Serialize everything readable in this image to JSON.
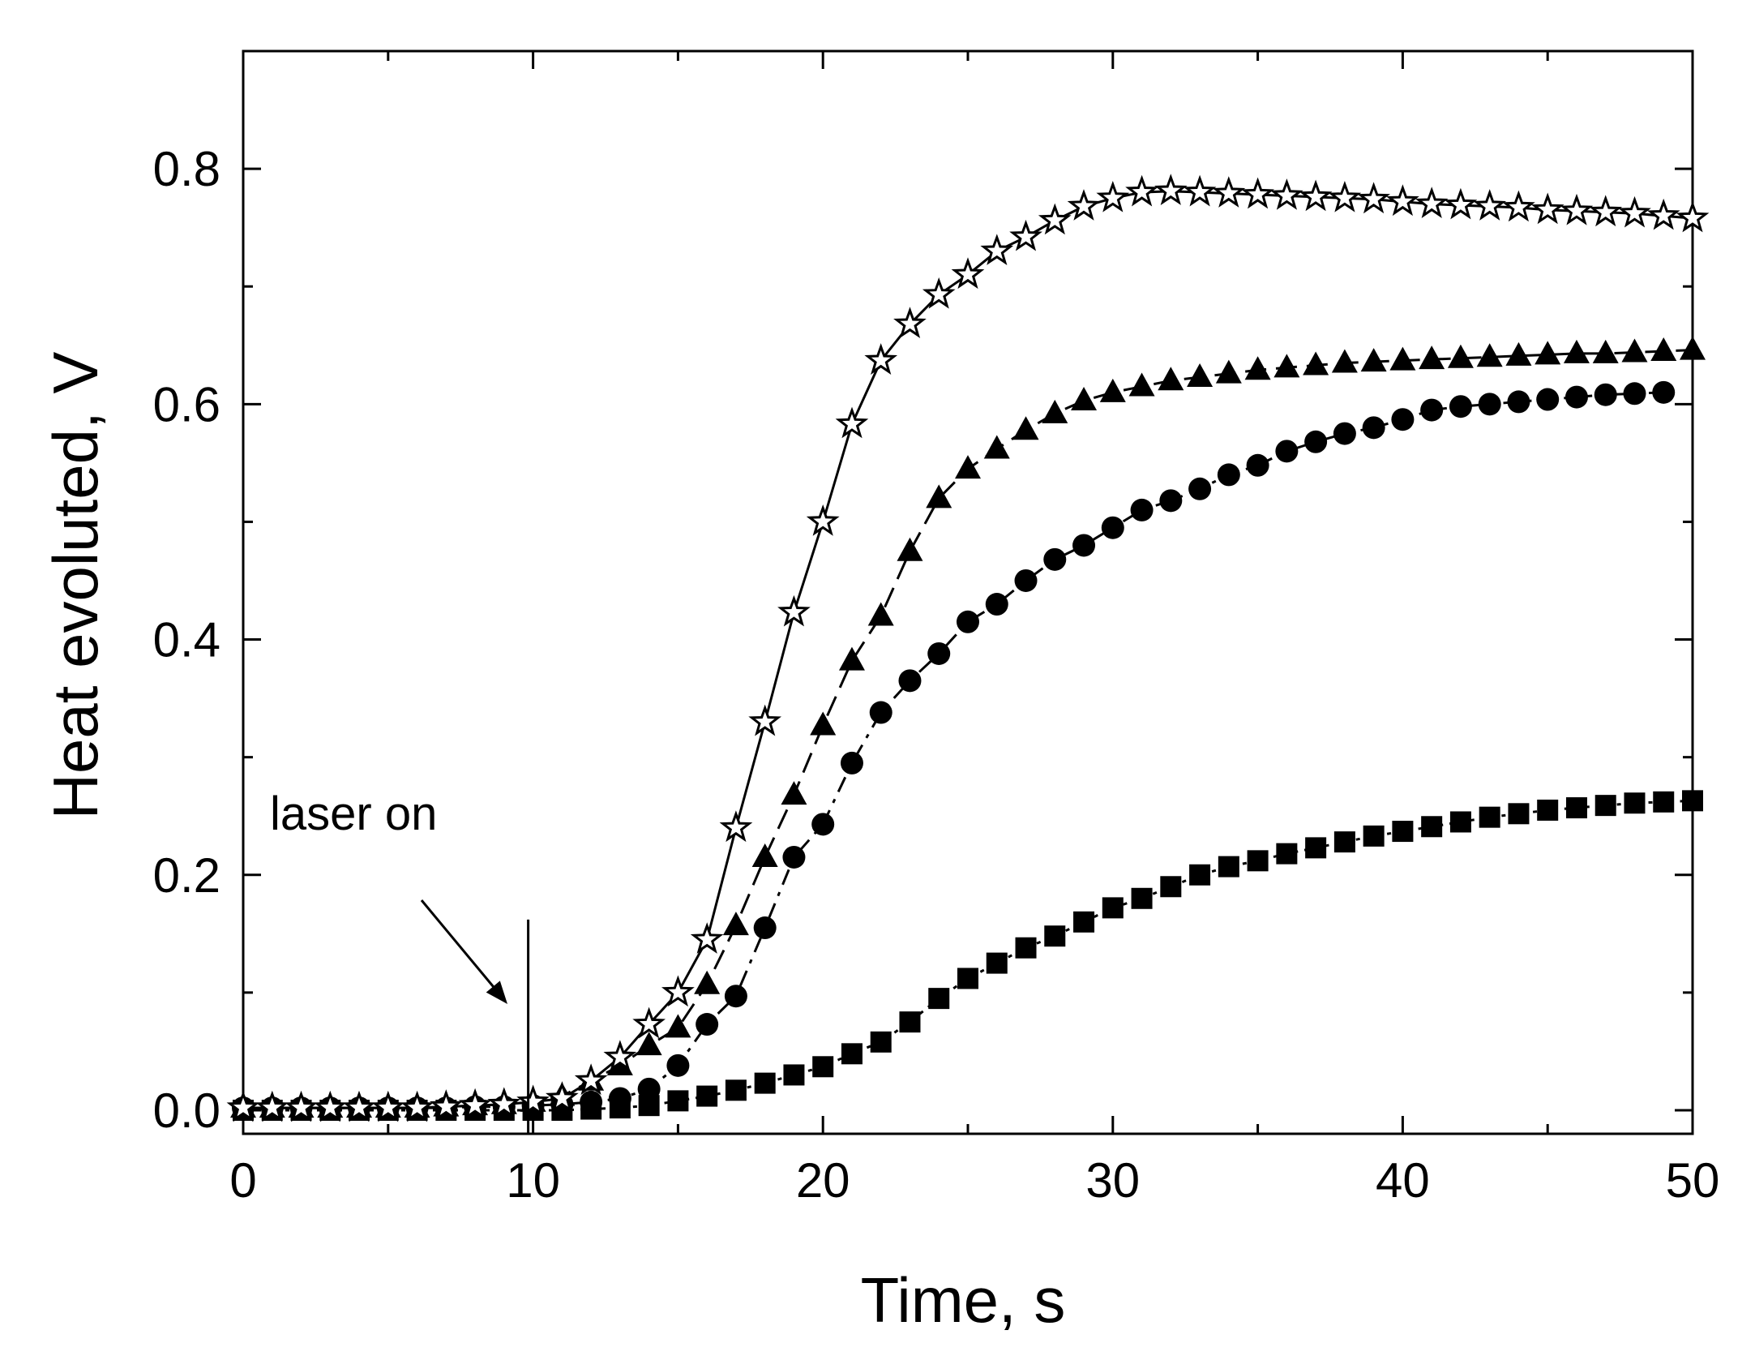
{
  "chart_data": {
    "type": "scatter",
    "title": "",
    "xlabel": "Time, s",
    "ylabel": "Heat evoluted, V",
    "xlim": [
      0,
      50
    ],
    "ylim": [
      -0.02,
      0.9
    ],
    "x_ticks": [
      0,
      10,
      20,
      30,
      40,
      50
    ],
    "x_tick_labels": [
      "0",
      "10",
      "20",
      "30",
      "40",
      "50"
    ],
    "y_ticks": [
      0.0,
      0.2,
      0.4,
      0.6,
      0.8
    ],
    "y_tick_labels": [
      "0.0",
      "0.2",
      "0.4",
      "0.6",
      "0.8"
    ],
    "x_minor_step": 5,
    "y_minor_step": 0.1,
    "grid": false,
    "legend": "none",
    "annotations": [
      {
        "text": "laser on",
        "x": 10
      }
    ],
    "color": "#000000",
    "series": [
      {
        "name": "squares",
        "marker": "square",
        "line": "dotted",
        "x": [
          0,
          1,
          2,
          3,
          4,
          5,
          6,
          7,
          8,
          9,
          10,
          11,
          12,
          13,
          14,
          15,
          16,
          17,
          18,
          19,
          20,
          21,
          22,
          23,
          24,
          25,
          26,
          27,
          28,
          29,
          30,
          31,
          32,
          33,
          34,
          35,
          36,
          37,
          38,
          39,
          40,
          41,
          42,
          43,
          44,
          45,
          46,
          47,
          48,
          49,
          50
        ],
        "y": [
          0,
          0,
          0,
          0,
          0,
          0,
          0,
          0,
          0,
          0,
          0,
          0,
          0.001,
          0.002,
          0.004,
          0.008,
          0.012,
          0.017,
          0.023,
          0.03,
          0.037,
          0.048,
          0.058,
          0.075,
          0.095,
          0.112,
          0.125,
          0.138,
          0.148,
          0.16,
          0.172,
          0.18,
          0.19,
          0.2,
          0.207,
          0.212,
          0.218,
          0.223,
          0.228,
          0.233,
          0.237,
          0.241,
          0.245,
          0.249,
          0.252,
          0.255,
          0.257,
          0.259,
          0.261,
          0.262,
          0.263
        ]
      },
      {
        "name": "circles",
        "marker": "circle",
        "line": "dash-dot",
        "x": [
          0,
          1,
          2,
          3,
          4,
          5,
          6,
          7,
          8,
          9,
          10,
          11,
          12,
          13,
          14,
          15,
          16,
          17,
          18,
          19,
          20,
          21,
          22,
          23,
          24,
          25,
          26,
          27,
          28,
          29,
          30,
          31,
          32,
          33,
          34,
          35,
          36,
          37,
          38,
          39,
          40,
          41,
          42,
          43,
          44,
          45,
          46,
          47,
          48,
          49
        ],
        "y": [
          0.002,
          0.002,
          0.002,
          0.002,
          0.002,
          0.002,
          0.002,
          0.002,
          0.003,
          0.003,
          0.004,
          0.005,
          0.007,
          0.01,
          0.018,
          0.038,
          0.073,
          0.097,
          0.155,
          0.215,
          0.243,
          0.295,
          0.338,
          0.365,
          0.388,
          0.415,
          0.43,
          0.45,
          0.468,
          0.48,
          0.495,
          0.51,
          0.518,
          0.528,
          0.54,
          0.548,
          0.56,
          0.568,
          0.575,
          0.58,
          0.587,
          0.595,
          0.598,
          0.6,
          0.602,
          0.604,
          0.606,
          0.608,
          0.609,
          0.61
        ]
      },
      {
        "name": "triangles",
        "marker": "triangle",
        "line": "dashed",
        "x": [
          0,
          1,
          2,
          3,
          4,
          5,
          6,
          7,
          8,
          9,
          10,
          11,
          12,
          13,
          14,
          15,
          16,
          17,
          18,
          19,
          20,
          21,
          22,
          23,
          24,
          25,
          26,
          27,
          28,
          29,
          30,
          31,
          32,
          33,
          34,
          35,
          36,
          37,
          38,
          39,
          40,
          41,
          42,
          43,
          44,
          45,
          46,
          47,
          48,
          49,
          50
        ],
        "y": [
          0.002,
          0.002,
          0.002,
          0.002,
          0.002,
          0.002,
          0.002,
          0.003,
          0.004,
          0.005,
          0.007,
          0.012,
          0.025,
          0.038,
          0.055,
          0.07,
          0.107,
          0.157,
          0.215,
          0.268,
          0.327,
          0.382,
          0.42,
          0.475,
          0.52,
          0.545,
          0.562,
          0.578,
          0.592,
          0.603,
          0.61,
          0.615,
          0.62,
          0.623,
          0.626,
          0.629,
          0.631,
          0.633,
          0.635,
          0.636,
          0.637,
          0.638,
          0.639,
          0.64,
          0.641,
          0.642,
          0.643,
          0.643,
          0.644,
          0.645,
          0.646
        ]
      },
      {
        "name": "stars",
        "marker": "star",
        "line": "solid",
        "x": [
          0,
          1,
          2,
          3,
          4,
          5,
          6,
          7,
          8,
          9,
          10,
          11,
          12,
          13,
          14,
          15,
          16,
          17,
          18,
          19,
          20,
          21,
          22,
          23,
          24,
          25,
          26,
          27,
          28,
          29,
          30,
          31,
          32,
          33,
          34,
          35,
          36,
          37,
          38,
          39,
          40,
          41,
          42,
          43,
          44,
          45,
          46,
          47,
          48,
          49,
          50
        ],
        "y": [
          0.002,
          0.002,
          0.002,
          0.002,
          0.002,
          0.002,
          0.002,
          0.003,
          0.004,
          0.005,
          0.007,
          0.01,
          0.025,
          0.045,
          0.073,
          0.1,
          0.145,
          0.24,
          0.33,
          0.423,
          0.5,
          0.583,
          0.637,
          0.668,
          0.693,
          0.71,
          0.73,
          0.742,
          0.756,
          0.768,
          0.775,
          0.78,
          0.781,
          0.78,
          0.779,
          0.778,
          0.777,
          0.776,
          0.775,
          0.774,
          0.772,
          0.77,
          0.769,
          0.768,
          0.767,
          0.765,
          0.764,
          0.763,
          0.762,
          0.76,
          0.758
        ]
      }
    ]
  }
}
